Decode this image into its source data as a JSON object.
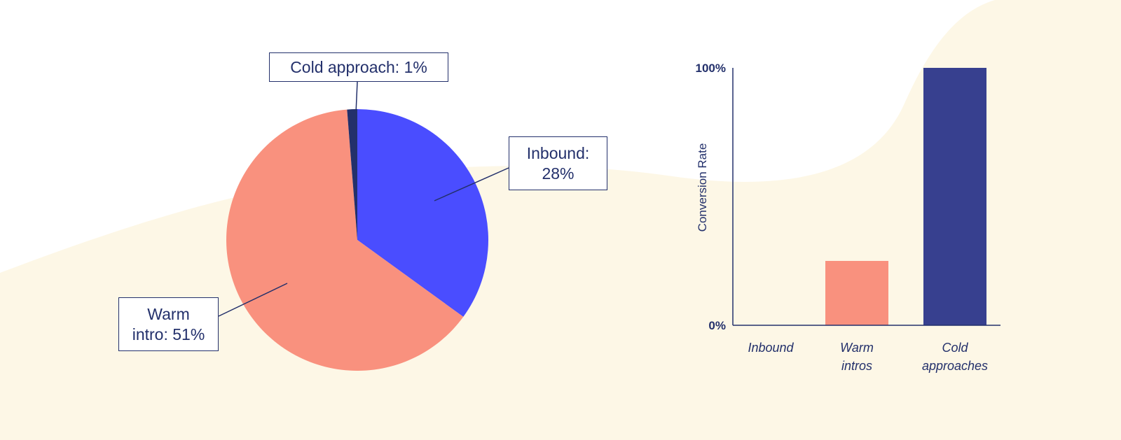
{
  "colors": {
    "background": "#ffffff",
    "blob": "#fdf7e6",
    "inbound": "#4a4dff",
    "warm": "#f9917e",
    "cold": "#23306b",
    "cold_bar": "#37408f",
    "ink": "#23306b"
  },
  "chart_data": [
    {
      "type": "pie",
      "slices": [
        {
          "name": "Inbound",
          "value": 28,
          "label_line1": "Inbound:",
          "label_line2": "28%",
          "color": "#4a4dff"
        },
        {
          "name": "Warm intro",
          "value": 51,
          "label_line1": "Warm",
          "label_line2": "intro: 51%",
          "color": "#f9917e"
        },
        {
          "name": "Cold approach",
          "value": 1,
          "label": "Cold approach: 1%",
          "color": "#23306b"
        }
      ]
    },
    {
      "type": "bar",
      "categories": [
        "Inbound",
        "Warm intros",
        "Cold approaches"
      ],
      "category_lines": [
        [
          "Inbound"
        ],
        [
          "Warm",
          "intros"
        ],
        [
          "Cold",
          "approaches"
        ]
      ],
      "values": [
        0,
        25,
        100
      ],
      "colors": [
        "#4a4dff",
        "#f9917e",
        "#37408f"
      ],
      "ylabel": "Conversion Rate",
      "ylim": [
        0,
        100
      ],
      "y_ticks": [
        0,
        100
      ],
      "y_tick_labels": [
        "0%",
        "100%"
      ],
      "grid": false
    }
  ]
}
